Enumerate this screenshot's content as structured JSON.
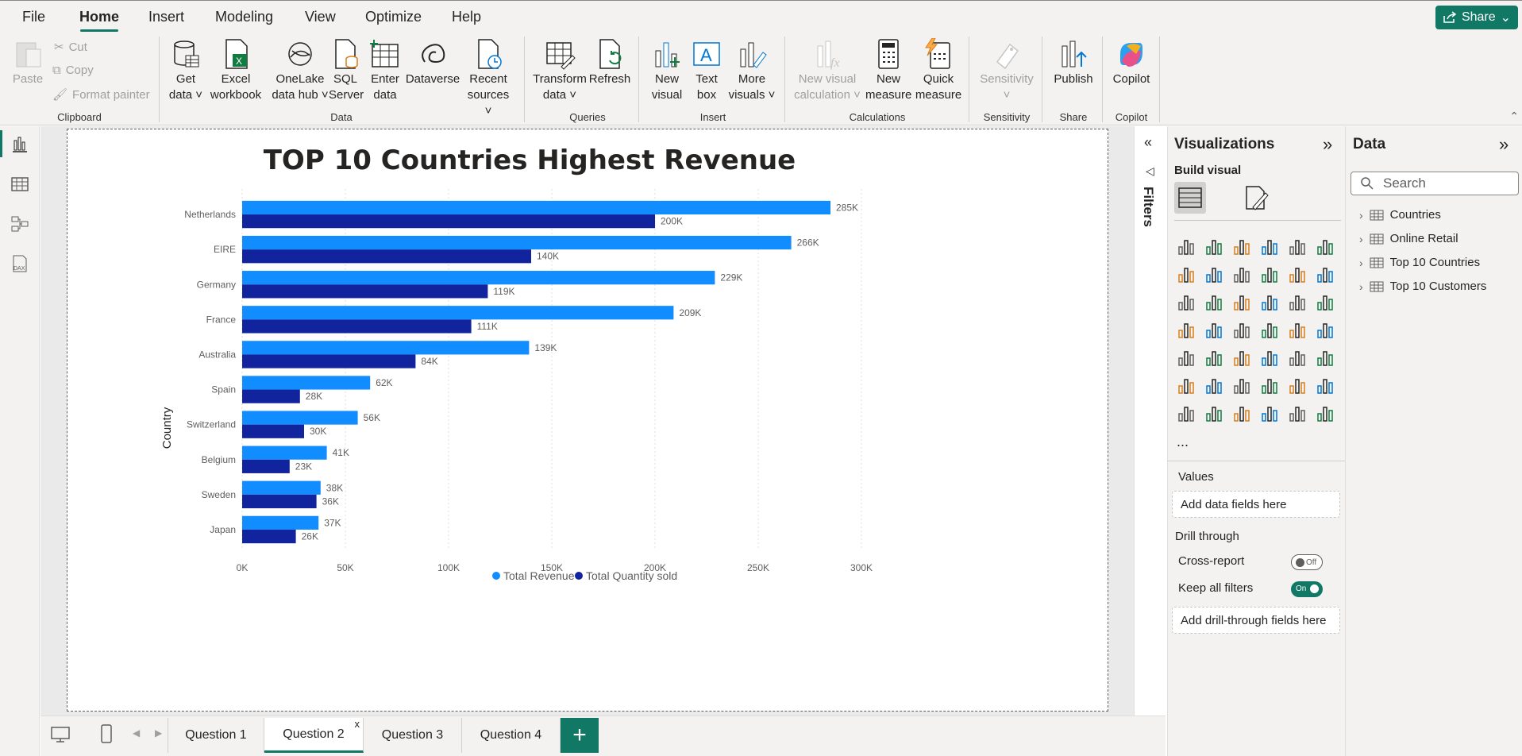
{
  "menu": {
    "items": [
      "File",
      "Home",
      "Insert",
      "Modeling",
      "View",
      "Optimize",
      "Help"
    ],
    "active": "Home",
    "share_label": "Share"
  },
  "ribbon": {
    "clipboard": {
      "paste": "Paste",
      "cut": "Cut",
      "copy": "Copy",
      "format_painter": "Format painter",
      "group": "Clipboard"
    },
    "data": {
      "get_data": [
        "Get",
        "data"
      ],
      "excel": [
        "Excel",
        "workbook"
      ],
      "onelake": [
        "OneLake",
        "data hub"
      ],
      "sql": [
        "SQL",
        "Server"
      ],
      "enter": [
        "Enter",
        "data"
      ],
      "dataverse": "Dataverse",
      "recent": [
        "Recent",
        "sources"
      ],
      "group": "Data"
    },
    "queries": {
      "transform": [
        "Transform",
        "data"
      ],
      "refresh": "Refresh",
      "group": "Queries"
    },
    "insert": {
      "new_visual": [
        "New",
        "visual"
      ],
      "text_box": [
        "Text",
        "box"
      ],
      "more_visuals": [
        "More",
        "visuals"
      ],
      "group": "Insert"
    },
    "calculations": {
      "new_visual_calc": [
        "New visual",
        "calculation"
      ],
      "new_measure": [
        "New",
        "measure"
      ],
      "quick_measure": [
        "Quick",
        "measure"
      ],
      "group": "Calculations"
    },
    "sensitivity": {
      "label": "Sensitivity",
      "group": "Sensitivity"
    },
    "share": {
      "publish": "Publish",
      "group": "Share"
    },
    "copilot": {
      "label": "Copilot",
      "group": "Copilot"
    }
  },
  "filters": {
    "label": "Filters"
  },
  "visualizations": {
    "title": "Visualizations",
    "build_visual": "Build visual",
    "values_label": "Values",
    "values_placeholder": "Add data fields here",
    "drill_through": "Drill through",
    "cross_report": "Cross-report",
    "cross_report_state": "Off",
    "keep_filters": "Keep all filters",
    "keep_filters_state": "On",
    "drill_placeholder": "Add drill-through fields here",
    "more": "..."
  },
  "data_pane": {
    "title": "Data",
    "search_placeholder": "Search",
    "tables": [
      "Countries",
      "Online Retail",
      "Top 10 Countries",
      "Top 10 Customers"
    ]
  },
  "pages": {
    "tabs": [
      "Question 1",
      "Question 2",
      "Question 3",
      "Question 4"
    ],
    "active": "Question 2",
    "close": "x",
    "add": "+"
  },
  "chart_data": {
    "type": "bar",
    "orientation": "horizontal",
    "title": "TOP 10 Countries Highest Revenue",
    "ylabel": "Country",
    "xlabel": "",
    "categories": [
      "Netherlands",
      "EIRE",
      "Germany",
      "France",
      "Australia",
      "Spain",
      "Switzerland",
      "Belgium",
      "Sweden",
      "Japan"
    ],
    "series": [
      {
        "name": "Total Revenue",
        "color": "#118dff",
        "values": [
          285000,
          266000,
          229000,
          209000,
          139000,
          62000,
          56000,
          41000,
          38000,
          37000
        ],
        "labels": [
          "285K",
          "266K",
          "229K",
          "209K",
          "139K",
          "62K",
          "56K",
          "41K",
          "38K",
          "37K"
        ]
      },
      {
        "name": "Total Quantity sold",
        "color": "#12239e",
        "values": [
          200000,
          140000,
          119000,
          111000,
          84000,
          28000,
          30000,
          23000,
          36000,
          26000
        ],
        "labels": [
          "200K",
          "140K",
          "119K",
          "111K",
          "84K",
          "28K",
          "30K",
          "23K",
          "36K",
          "26K"
        ]
      }
    ],
    "xlim": [
      0,
      300000
    ],
    "xticks": [
      0,
      50000,
      100000,
      150000,
      200000,
      250000,
      300000
    ],
    "xtick_labels": [
      "0K",
      "50K",
      "100K",
      "150K",
      "200K",
      "250K",
      "300K"
    ],
    "grid": true,
    "legend_position": "bottom"
  }
}
